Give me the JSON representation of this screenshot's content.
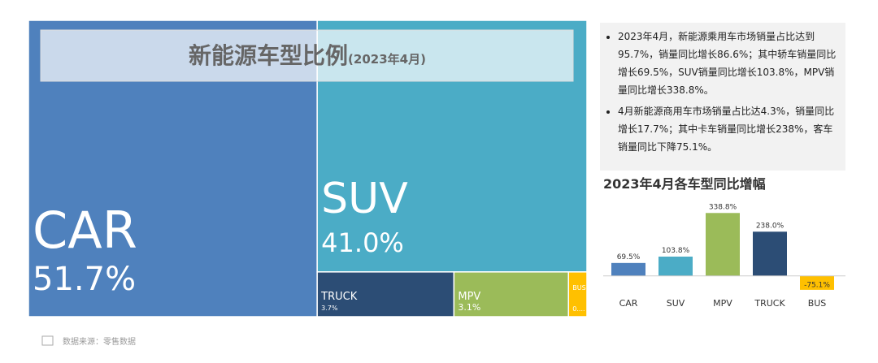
{
  "chart_data": [
    {
      "type": "treemap",
      "title": "新能源车型比例",
      "subtitle": "(2023年4月)",
      "categories": [
        "CAR",
        "SUV",
        "TRUCK",
        "MPV",
        "BUS"
      ],
      "values": [
        51.7,
        41.0,
        3.7,
        3.1,
        0.5
      ],
      "value_labels": [
        "51.7%",
        "41.0%",
        "3.7%",
        "3.1%",
        "0...."
      ],
      "colors": [
        "#4f81bd",
        "#4bacc6",
        "#2c4d75",
        "#9bbb59",
        "#ffc000"
      ]
    },
    {
      "type": "bar",
      "title": "2023年4月各车型同比增幅",
      "categories": [
        "CAR",
        "SUV",
        "MPV",
        "TRUCK",
        "BUS"
      ],
      "values": [
        69.5,
        103.8,
        338.8,
        238.0,
        -75.1
      ],
      "value_labels": [
        "69.5%",
        "103.8%",
        "338.8%",
        "238.0%",
        "-75.1%"
      ],
      "colors": [
        "#4f81bd",
        "#4bacc6",
        "#9bbb59",
        "#2c4d75",
        "#ffc000"
      ],
      "ylim": [
        -80,
        340
      ]
    }
  ],
  "notes": [
    "2023年4月，新能源乘用车市场销量占比达到95.7%，销量同比增长86.6%；其中轿车销量同比增长69.5%，SUV销量同比增长103.8%，MPV销量同比增长338.8%。",
    "4月新能源商用车市场销量占比达4.3%，销量同比增长17.7%；其中卡车销量同比增长238%，客车销量同比下降75.1%。"
  ],
  "source": "数据来源：零售数据"
}
